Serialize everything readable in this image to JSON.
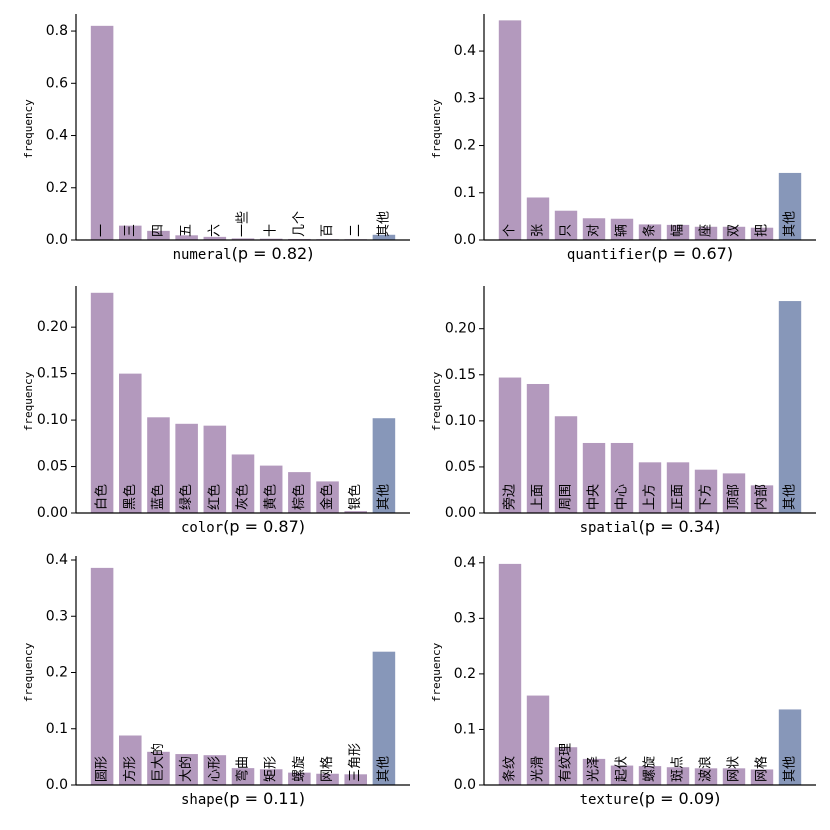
{
  "colors": {
    "bar": "#b399bd",
    "other": "#8797b9",
    "axis": "#000000"
  },
  "ylabel": "frequency",
  "chart_data": [
    {
      "type": "bar",
      "name": "numeral",
      "xlabel_prefix": "numeral",
      "p_text": "(p = 0.82)",
      "categories": [
        "一",
        "三",
        "四",
        "五",
        "六",
        "一些",
        "十",
        "几个",
        "百",
        "二",
        "其他"
      ],
      "values": [
        0.82,
        0.055,
        0.035,
        0.018,
        0.012,
        0.006,
        0.005,
        0.004,
        0.003,
        0.003,
        0.02
      ],
      "ylim": [
        0,
        0.85
      ],
      "yticks": [
        0.0,
        0.2,
        0.4,
        0.6,
        0.8
      ],
      "ytick_labels": [
        "0.0",
        "0.2",
        "0.4",
        "0.6",
        "0.8"
      ]
    },
    {
      "type": "bar",
      "name": "quantifier",
      "xlabel_prefix": "quantifier",
      "p_text": "(p = 0.67)",
      "categories": [
        "个",
        "张",
        "只",
        "对",
        "辆",
        "条",
        "幅",
        "座",
        "双",
        "把",
        "其他"
      ],
      "values": [
        0.465,
        0.09,
        0.062,
        0.046,
        0.045,
        0.033,
        0.032,
        0.028,
        0.028,
        0.026,
        0.142
      ],
      "ylim": [
        0,
        0.47
      ],
      "yticks": [
        0.0,
        0.1,
        0.2,
        0.3,
        0.4
      ],
      "ytick_labels": [
        "0.0",
        "0.1",
        "0.2",
        "0.3",
        "0.4"
      ]
    },
    {
      "type": "bar",
      "name": "color",
      "xlabel_prefix": "color",
      "p_text": "(p = 0.87)",
      "categories": [
        "白色",
        "黑色",
        "蓝色",
        "绿色",
        "红色",
        "灰色",
        "黄色",
        "棕色",
        "金色",
        "银色",
        "其他"
      ],
      "values": [
        0.237,
        0.15,
        0.103,
        0.096,
        0.094,
        0.063,
        0.051,
        0.044,
        0.034,
        0.002,
        0.102
      ],
      "ylim": [
        0,
        0.24
      ],
      "yticks": [
        0.0,
        0.05,
        0.1,
        0.15,
        0.2
      ],
      "ytick_labels": [
        "0.00",
        "0.05",
        "0.10",
        "0.15",
        "0.20"
      ]
    },
    {
      "type": "bar",
      "name": "spatial",
      "xlabel_prefix": "spatial",
      "p_text": "(p = 0.34)",
      "categories": [
        "旁边",
        "上面",
        "周围",
        "中央",
        "中心",
        "上方",
        "正面",
        "下方",
        "顶部",
        "内部",
        "其他"
      ],
      "values": [
        0.147,
        0.14,
        0.105,
        0.076,
        0.076,
        0.055,
        0.055,
        0.047,
        0.043,
        0.03,
        0.23
      ],
      "ylim": [
        0,
        0.242
      ],
      "yticks": [
        0.0,
        0.05,
        0.1,
        0.15,
        0.2
      ],
      "ytick_labels": [
        "0.00",
        "0.05",
        "0.10",
        "0.15",
        "0.20"
      ]
    },
    {
      "type": "bar",
      "name": "shape",
      "xlabel_prefix": "shape",
      "p_text": "(p = 0.11)",
      "categories": [
        "圆形",
        "方形",
        "巨大的",
        "大的",
        "心形",
        "弯曲",
        "矩形",
        "螺旋",
        "网格",
        "三角形",
        "其他"
      ],
      "values": [
        0.386,
        0.088,
        0.059,
        0.055,
        0.053,
        0.03,
        0.028,
        0.022,
        0.02,
        0.019,
        0.237
      ],
      "ylim": [
        0,
        0.4
      ],
      "yticks": [
        0.0,
        0.1,
        0.2,
        0.3,
        0.4
      ],
      "ytick_labels": [
        "0.0",
        "0.1",
        "0.2",
        "0.3",
        "0.4"
      ]
    },
    {
      "type": "bar",
      "name": "texture",
      "xlabel_prefix": "texture",
      "p_text": "(p = 0.09)",
      "categories": [
        "条纹",
        "光滑",
        "有纹理",
        "光泽",
        "起伏",
        "螺旋",
        "斑点",
        "波浪",
        "网状",
        "网格",
        "其他"
      ],
      "values": [
        0.398,
        0.161,
        0.068,
        0.047,
        0.035,
        0.034,
        0.032,
        0.03,
        0.03,
        0.028,
        0.136
      ],
      "ylim": [
        0,
        0.405
      ],
      "yticks": [
        0.0,
        0.1,
        0.2,
        0.3,
        0.4
      ],
      "ytick_labels": [
        "0.0",
        "0.1",
        "0.2",
        "0.3",
        "0.4"
      ]
    }
  ]
}
